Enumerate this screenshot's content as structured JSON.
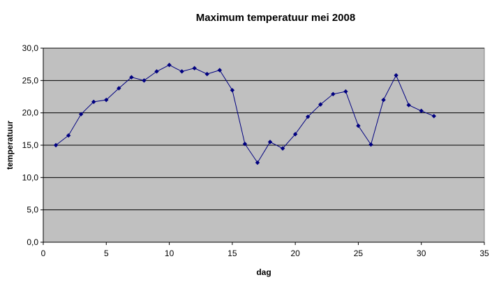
{
  "chart_data": {
    "type": "line",
    "title": "Maximum temperatuur mei 2008",
    "xlabel": "dag",
    "ylabel": "temperatuur",
    "xlim": [
      0,
      35
    ],
    "ylim": [
      0,
      30
    ],
    "x_ticks": [
      "0",
      "5",
      "10",
      "15",
      "20",
      "25",
      "30",
      "35"
    ],
    "y_ticks": [
      "0,0",
      "5,0",
      "10,0",
      "15,0",
      "20,0",
      "25,0",
      "30,0"
    ],
    "grid": "horizontal",
    "legend": "none",
    "plot_background": "#c0c0c0",
    "line_color": "#000080",
    "series": [
      {
        "x": [
          1,
          2,
          3,
          4,
          5,
          6,
          7,
          8,
          9,
          10,
          11,
          12,
          13,
          14,
          15,
          16,
          17,
          18,
          19,
          20,
          21,
          22,
          23,
          24,
          25,
          26,
          27,
          28,
          29,
          30,
          31
        ],
        "values": [
          15.0,
          16.5,
          19.8,
          21.7,
          22.0,
          23.8,
          25.5,
          25.0,
          26.4,
          27.4,
          26.4,
          26.9,
          26.0,
          26.6,
          23.5,
          15.2,
          12.3,
          15.5,
          14.5,
          16.7,
          19.4,
          21.3,
          22.9,
          23.3,
          18.0,
          15.1,
          22.0,
          25.8,
          21.2,
          20.3,
          19.5
        ]
      }
    ]
  }
}
